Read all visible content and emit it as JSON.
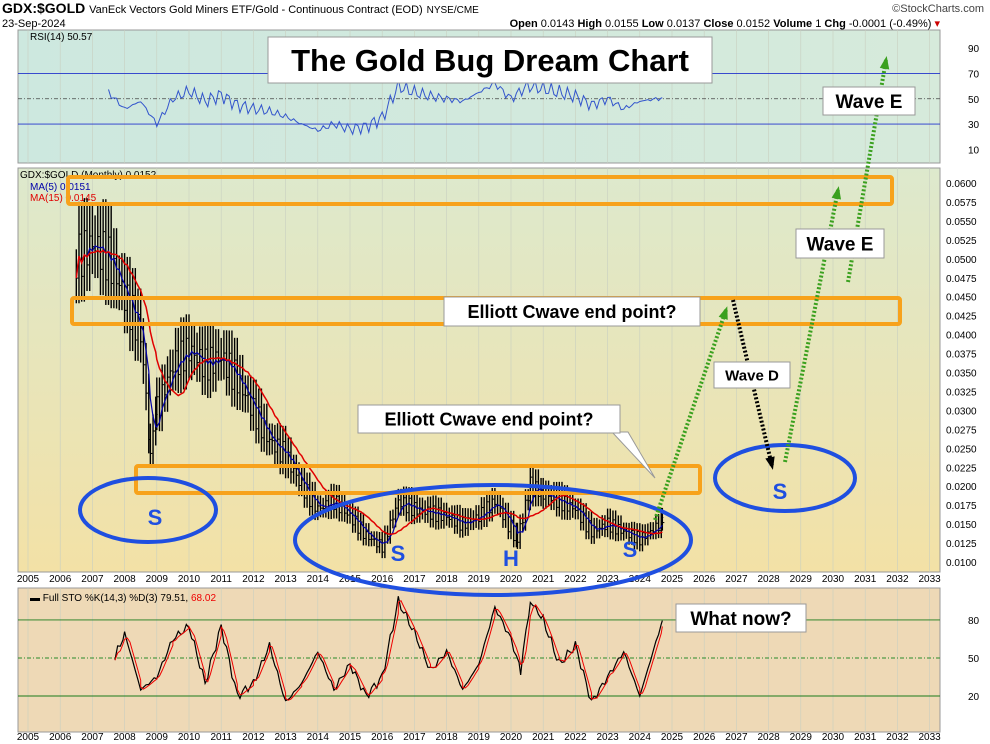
{
  "header": {
    "symbol": "GDX:$GOLD",
    "description": "VanEck Vectors Gold Miners ETF/Gold - Continuous Contract (EOD)",
    "exchange": "NYSE/CME",
    "date": "23-Sep-2024",
    "brand": "©StockCharts.com",
    "open_label": "Open",
    "open": "0.0143",
    "high_label": "High",
    "high": "0.0155",
    "low_label": "Low",
    "low": "0.0137",
    "close_label": "Close",
    "close": "0.0152",
    "volume_label": "Volume",
    "volume": "1",
    "chg_label": "Chg",
    "chg": "-0.0001 (-0.49%)"
  },
  "colors": {
    "rsi_bg": "#cde8df",
    "price_bg_top": "#dde9cd",
    "price_bg_bottom": "#f3e1a6",
    "stoch_bg": "#eed9b6",
    "orange": "#f7a21b",
    "blue": "#1f4fe0",
    "green": "#3aa01e",
    "ma5": "#0000aa",
    "ma15": "#e00000"
  },
  "chart_data": [
    {
      "type": "line",
      "panel": "RSI",
      "legend": "RSI(14) 50.57",
      "ylim": [
        0,
        100
      ],
      "ticks": [
        10,
        30,
        50,
        70,
        90
      ],
      "hlines": [
        30,
        50,
        70
      ],
      "x": [
        2007.5,
        2008,
        2008.5,
        2009,
        2009.5,
        2010,
        2010.5,
        2011,
        2011.5,
        2012,
        2012.5,
        2013,
        2013.5,
        2014,
        2014.5,
        2015,
        2015.5,
        2016,
        2016.5,
        2017,
        2017.5,
        2018,
        2018.5,
        2019,
        2019.5,
        2020,
        2020.5,
        2021,
        2021.5,
        2022,
        2022.5,
        2023,
        2023.5,
        2024,
        2024.7
      ],
      "y": [
        55,
        42,
        48,
        30,
        50,
        56,
        48,
        53,
        45,
        42,
        40,
        36,
        30,
        25,
        30,
        26,
        28,
        35,
        60,
        55,
        52,
        50,
        48,
        55,
        62,
        50,
        60,
        58,
        55,
        52,
        45,
        50,
        42,
        48,
        50.57
      ]
    },
    {
      "type": "bar",
      "panel": "Price",
      "title": "GDX:$GOLD (Monthly) 0.0152",
      "ma_labels": [
        "MA(5) 0.0151",
        "MA(15) 0.0145"
      ],
      "ylim": [
        0.0095,
        0.0615
      ],
      "ticks": [
        "0.0600",
        "0.0575",
        "0.0550",
        "0.0525",
        "0.0500",
        "0.0475",
        "0.0450",
        "0.0425",
        "0.0400",
        "0.0375",
        "0.0350",
        "0.0325",
        "0.0300",
        "0.0275",
        "0.0250",
        "0.0225",
        "0.0200",
        "0.0175",
        "0.0150",
        "0.0125",
        "0.0100"
      ],
      "x": [
        2006.5,
        2007,
        2007.5,
        2008,
        2008.5,
        2008.8,
        2009,
        2009.5,
        2010,
        2010.5,
        2011,
        2011.5,
        2012,
        2012.5,
        2013,
        2013.5,
        2014,
        2014.5,
        2015,
        2015.5,
        2016,
        2016.5,
        2017,
        2017.5,
        2018,
        2018.5,
        2019,
        2019.5,
        2020.2,
        2020.6,
        2021,
        2021.5,
        2022,
        2022.5,
        2023,
        2023.5,
        2024,
        2024.7
      ],
      "close": [
        0.05,
        0.052,
        0.05,
        0.045,
        0.04,
        0.025,
        0.03,
        0.036,
        0.038,
        0.036,
        0.037,
        0.034,
        0.03,
        0.026,
        0.024,
        0.02,
        0.017,
        0.018,
        0.016,
        0.0135,
        0.012,
        0.018,
        0.017,
        0.0165,
        0.016,
        0.015,
        0.016,
        0.018,
        0.013,
        0.02,
        0.019,
        0.018,
        0.017,
        0.014,
        0.015,
        0.014,
        0.013,
        0.0152
      ]
    },
    {
      "type": "line",
      "panel": "Stochastic",
      "legend_main": "Full STO %K(14,3) %D(3) 79.51,",
      "legend_d": "68.02",
      "ylim": [
        0,
        100
      ],
      "ticks": [
        20,
        50,
        80
      ],
      "x": [
        2007.7,
        2008,
        2008.5,
        2009,
        2009.5,
        2010,
        2010.5,
        2011,
        2011.5,
        2012,
        2012.5,
        2013,
        2013.5,
        2014,
        2014.5,
        2015,
        2015.5,
        2016,
        2016.5,
        2017,
        2017.5,
        2018,
        2018.5,
        2019,
        2019.5,
        2020,
        2020.3,
        2020.6,
        2021,
        2021.5,
        2022,
        2022.5,
        2023,
        2023.5,
        2024,
        2024.7
      ],
      "k": [
        50,
        70,
        25,
        35,
        65,
        75,
        30,
        75,
        20,
        30,
        60,
        15,
        30,
        55,
        25,
        45,
        20,
        35,
        95,
        70,
        40,
        55,
        25,
        45,
        90,
        65,
        40,
        95,
        80,
        45,
        60,
        15,
        35,
        55,
        20,
        79.51
      ]
    },
    {
      "type": "axis",
      "years": [
        "2005",
        "2006",
        "2007",
        "2008",
        "2009",
        "2010",
        "2011",
        "2012",
        "2013",
        "2014",
        "2015",
        "2016",
        "2017",
        "2018",
        "2019",
        "2020",
        "2021",
        "2022",
        "2023",
        "2024",
        "2025",
        "2026",
        "2027",
        "2028",
        "2029",
        "2030",
        "2031",
        "2032",
        "2033"
      ]
    }
  ],
  "annotations": {
    "title": "The Gold Bug Dream Chart",
    "wave_e_top": "Wave E",
    "wave_e_mid": "Wave E",
    "wave_d": "Wave D",
    "cwave_upper": "Elliott Cwave end point?",
    "cwave_lower": "Elliott Cwave end point?",
    "what_now": "What now?",
    "s1": "S",
    "s2": "S",
    "s3": "S",
    "s4": "S",
    "h": "H"
  }
}
